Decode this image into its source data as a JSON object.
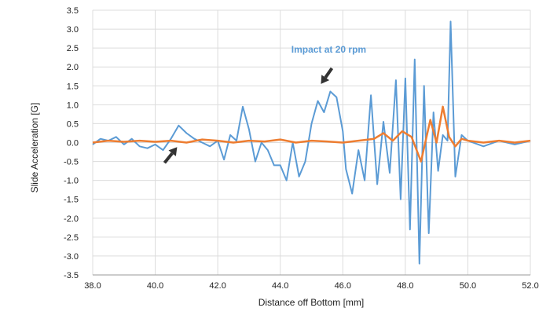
{
  "chart_data": {
    "type": "line",
    "title": "",
    "xlabel": "Distance off Bottom [mm]",
    "ylabel": "Slide Acceleration [G]",
    "xlim": [
      38.0,
      52.0
    ],
    "ylim": [
      -3.5,
      3.5
    ],
    "grid": true,
    "x_ticks": [
      "38.0",
      "40.0",
      "42.0",
      "44.0",
      "46.0",
      "48.0",
      "50.0",
      "52.0"
    ],
    "y_ticks": [
      "3.5",
      "3.0",
      "2.5",
      "2.0",
      "1.5",
      "1.0",
      "0.5",
      "0.0",
      "-0.5",
      "-1.0",
      "-1.5",
      "-2.0",
      "-2.5",
      "-3.0",
      "-3.5"
    ],
    "series": [
      {
        "color": "#5b9bd5",
        "x": [
          38.0,
          38.25,
          38.5,
          38.75,
          39.0,
          39.25,
          39.5,
          39.75,
          40.0,
          40.25,
          40.5,
          40.75,
          41.0,
          41.25,
          41.5,
          41.75,
          42.0,
          42.2,
          42.4,
          42.6,
          42.8,
          43.0,
          43.2,
          43.4,
          43.6,
          43.8,
          44.0,
          44.2,
          44.4,
          44.6,
          44.8,
          45.0,
          45.2,
          45.4,
          45.6,
          45.8,
          46.0,
          46.1,
          46.3,
          46.5,
          46.7,
          46.9,
          47.1,
          47.3,
          47.5,
          47.7,
          47.85,
          48.0,
          48.15,
          48.3,
          48.45,
          48.6,
          48.75,
          48.9,
          49.05,
          49.2,
          49.35,
          49.45,
          49.6,
          49.8,
          50.0,
          50.5,
          51.0,
          51.5,
          52.0
        ],
        "values": [
          -0.05,
          0.1,
          0.05,
          0.15,
          -0.05,
          0.1,
          -0.1,
          -0.15,
          -0.05,
          -0.2,
          0.1,
          0.45,
          0.25,
          0.1,
          0.0,
          -0.1,
          0.05,
          -0.45,
          0.2,
          0.05,
          0.95,
          0.35,
          -0.5,
          0.0,
          -0.2,
          -0.6,
          -0.6,
          -1.0,
          0.0,
          -0.9,
          -0.5,
          0.5,
          1.1,
          0.8,
          1.35,
          1.2,
          0.3,
          -0.7,
          -1.35,
          -0.2,
          -1.0,
          1.25,
          -1.1,
          0.55,
          -0.8,
          1.65,
          -1.5,
          1.7,
          -2.3,
          2.2,
          -3.2,
          1.5,
          -2.4,
          0.8,
          -0.75,
          0.2,
          0.05,
          3.2,
          -0.9,
          0.2,
          0.05,
          -0.1,
          0.05,
          -0.05,
          0.05
        ]
      },
      {
        "color": "#ed7d31",
        "x": [
          38.0,
          38.5,
          39.0,
          39.5,
          40.0,
          40.5,
          41.0,
          41.5,
          42.0,
          42.5,
          43.0,
          43.5,
          44.0,
          44.5,
          45.0,
          45.5,
          46.0,
          46.5,
          47.0,
          47.3,
          47.6,
          47.9,
          48.2,
          48.5,
          48.8,
          49.0,
          49.2,
          49.4,
          49.6,
          49.8,
          50.0,
          50.5,
          51.0,
          51.5,
          52.0
        ],
        "values": [
          0.0,
          0.05,
          0.02,
          0.05,
          0.02,
          0.05,
          0.0,
          0.08,
          0.05,
          0.0,
          0.05,
          0.03,
          0.08,
          0.0,
          0.05,
          0.03,
          0.0,
          0.05,
          0.1,
          0.25,
          0.05,
          0.3,
          0.15,
          -0.5,
          0.6,
          0.0,
          0.95,
          0.15,
          -0.1,
          0.1,
          0.05,
          0.0,
          0.05,
          0.0,
          0.05
        ]
      }
    ],
    "annotations": [
      {
        "text": "Impact at 20 rpm",
        "color": "#5b9bd5",
        "arrow_to": [
          45.3,
          1.55
        ]
      },
      {
        "text": "",
        "color": "#333333",
        "arrow_to": [
          40.7,
          -0.12
        ]
      }
    ]
  }
}
